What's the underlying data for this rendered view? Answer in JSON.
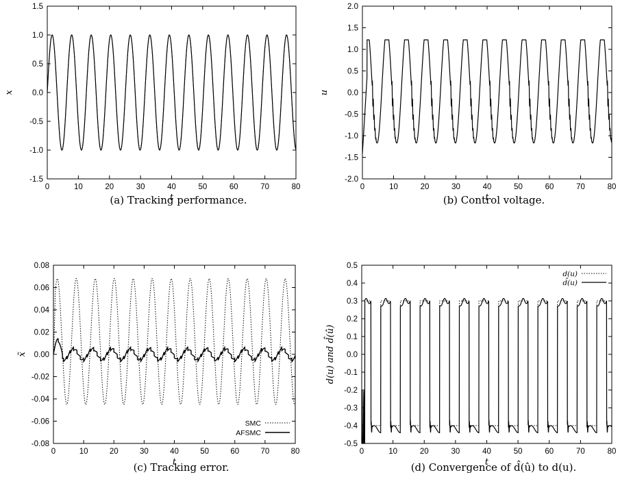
{
  "chart_data": [
    {
      "id": "a",
      "type": "line",
      "caption": "(a) Tracking performance.",
      "xlabel": "t",
      "ylabel": "x",
      "xlim": [
        0,
        80
      ],
      "ylim": [
        -1.5,
        1.5
      ],
      "xticks": [
        "0",
        "10",
        "20",
        "30",
        "40",
        "50",
        "60",
        "70",
        "80"
      ],
      "yticks": [
        "-1.5",
        "-1.0",
        "-0.5",
        "0.0",
        "0.5",
        "1.0",
        "1.5"
      ],
      "series": [
        {
          "signal": "sine",
          "amplitude": 1.0,
          "period": 6.2832,
          "style": "solid"
        },
        {
          "signal": "sine",
          "amplitude": 1.0,
          "period": 6.2832,
          "style": "dotted"
        }
      ]
    },
    {
      "id": "b",
      "type": "line",
      "caption": "(b) Control voltage.",
      "xlabel": "t",
      "ylabel": "u",
      "xlim": [
        0,
        80
      ],
      "ylim": [
        -2.0,
        2.0
      ],
      "xticks": [
        "0",
        "10",
        "20",
        "30",
        "40",
        "50",
        "60",
        "70",
        "80"
      ],
      "yticks": [
        "-2.0",
        "-1.5",
        "-1.0",
        "-0.5",
        "0.0",
        "0.5",
        "1.0",
        "1.5",
        "2.0"
      ],
      "series": [
        {
          "signal": "control",
          "peak": 1.22,
          "trough": -1.42,
          "period": 6.2832,
          "style": "solid"
        }
      ]
    },
    {
      "id": "c",
      "type": "line",
      "caption": "(c) Tracking error.",
      "xlabel": "t",
      "ylabel": "x̃",
      "xlim": [
        0,
        80
      ],
      "ylim": [
        -0.08,
        0.08
      ],
      "xticks": [
        "0",
        "10",
        "20",
        "30",
        "40",
        "50",
        "60",
        "70",
        "80"
      ],
      "yticks": [
        "-0.08",
        "-0.06",
        "-0.04",
        "-0.02",
        "0.00",
        "0.02",
        "0.04",
        "0.06",
        "0.08"
      ],
      "legend_position": "bottom-right",
      "series": [
        {
          "name": "SMC",
          "signal": "sine_offset",
          "peak": 0.068,
          "trough": -0.045,
          "period": 6.2832,
          "style": "dotted"
        },
        {
          "name": "AFSMC",
          "signal": "small_error",
          "amplitude": 0.005,
          "initial_peak": 0.014,
          "period": 6.2832,
          "style": "solid"
        }
      ]
    },
    {
      "id": "d",
      "type": "line",
      "caption": "(d) Convergence of d̂(û) to d(u).",
      "xlabel": "t",
      "ylabel": "d(u) and d̂(û)",
      "xlim": [
        0,
        80
      ],
      "ylim": [
        -0.5,
        0.5
      ],
      "xticks": [
        "0",
        "10",
        "20",
        "30",
        "40",
        "50",
        "60",
        "70",
        "80"
      ],
      "yticks": [
        "-0.5",
        "-0.4",
        "-0.3",
        "-0.2",
        "-0.1",
        "0.0",
        "0.1",
        "0.2",
        "0.3",
        "0.4",
        "0.5"
      ],
      "legend_position": "top-right",
      "series": [
        {
          "name": "d(u)",
          "signal": "square",
          "high": 0.3,
          "low": -0.4,
          "period": 6.2832,
          "style": "dotted"
        },
        {
          "name": "d̂(u)",
          "signal": "square_estimate",
          "high": 0.3,
          "low": -0.42,
          "period": 6.2832,
          "style": "solid"
        }
      ]
    }
  ]
}
